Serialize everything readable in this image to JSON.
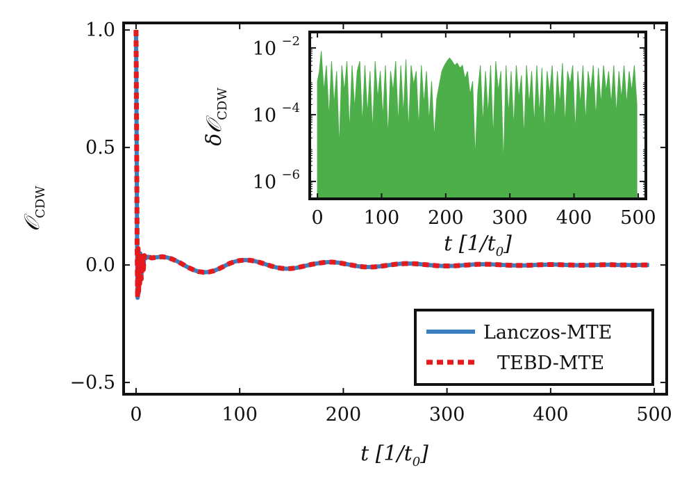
{
  "chart_data": [
    {
      "type": "line",
      "xlabel": "t [1/t₀]",
      "ylabel": "𝒪 CDW",
      "xlim": [
        -12,
        512
      ],
      "ylim": [
        -0.55,
        1.03
      ],
      "xticks": [
        0,
        100,
        200,
        300,
        400,
        500
      ],
      "yticks": [
        -0.5,
        0.0,
        0.5,
        1.0
      ],
      "xtick_labels": [
        "0",
        "100",
        "200",
        "300",
        "400",
        "500"
      ],
      "ytick_labels": [
        "−0.5",
        "0.0",
        "0.5",
        "1.0"
      ],
      "legend_position": "lower-right",
      "series": [
        {
          "name": "Lanczos-MTE",
          "color": "#3a7ebf",
          "style": "solid",
          "x": [
            0,
            0.5,
            1,
            1.5,
            2,
            2.5,
            3,
            3.5,
            4,
            5,
            6,
            7,
            8,
            10,
            12,
            15,
            20,
            25,
            30,
            35,
            40,
            45,
            50,
            55,
            60,
            65,
            70,
            75,
            80,
            85,
            90,
            95,
            100,
            105,
            110,
            115,
            120,
            125,
            130,
            135,
            140,
            145,
            150,
            155,
            160,
            165,
            170,
            175,
            180,
            185,
            190,
            195,
            200,
            205,
            210,
            215,
            220,
            225,
            230,
            235,
            240,
            245,
            250,
            255,
            260,
            265,
            270,
            275,
            280,
            285,
            290,
            295,
            300,
            305,
            310,
            315,
            320,
            325,
            330,
            335,
            340,
            345,
            350,
            355,
            360,
            365,
            370,
            375,
            380,
            385,
            390,
            395,
            400,
            405,
            410,
            415,
            420,
            425,
            430,
            435,
            440,
            445,
            450,
            455,
            460,
            465,
            470,
            475,
            480,
            485,
            490,
            495
          ],
          "y": [
            1.0,
            0.6,
            0.1,
            -0.14,
            0.07,
            -0.12,
            0.04,
            -0.08,
            0.05,
            -0.06,
            0.04,
            -0.02,
            0.04,
            0.03,
            0.035,
            0.03,
            0.033,
            0.035,
            0.032,
            0.025,
            0.015,
            0.003,
            -0.01,
            -0.02,
            -0.028,
            -0.031,
            -0.03,
            -0.025,
            -0.016,
            -0.005,
            0.006,
            0.014,
            0.019,
            0.021,
            0.02,
            0.016,
            0.01,
            0.003,
            -0.004,
            -0.01,
            -0.014,
            -0.016,
            -0.015,
            -0.012,
            -0.007,
            -0.002,
            0.003,
            0.007,
            0.01,
            0.012,
            0.012,
            0.01,
            0.006,
            0.002,
            -0.002,
            -0.006,
            -0.008,
            -0.009,
            -0.008,
            -0.006,
            -0.003,
            0.0,
            0.003,
            0.005,
            0.006,
            0.006,
            0.005,
            0.003,
            0.001,
            -0.001,
            -0.003,
            -0.004,
            -0.004,
            -0.004,
            -0.003,
            -0.001,
            0.0,
            0.002,
            0.003,
            0.003,
            0.003,
            0.002,
            0.001,
            0.0,
            -0.001,
            -0.002,
            -0.002,
            -0.002,
            -0.001,
            0.0,
            0.001,
            0.001,
            0.002,
            0.002,
            0.001,
            0.0,
            0.0,
            -0.001,
            -0.001,
            -0.001,
            0.0,
            0.0,
            0.001,
            0.001,
            0.001,
            0.0,
            0.0,
            0.0,
            -0.001,
            0.0,
            0.0,
            0.0
          ]
        },
        {
          "name": "TEBD-MTE",
          "color": "#e41a1c",
          "style": "dashed",
          "x": [
            0,
            0.5,
            1,
            1.5,
            2,
            2.5,
            3,
            3.5,
            4,
            5,
            6,
            7,
            8,
            10,
            12,
            15,
            20,
            25,
            30,
            35,
            40,
            45,
            50,
            55,
            60,
            65,
            70,
            75,
            80,
            85,
            90,
            95,
            100,
            105,
            110,
            115,
            120,
            125,
            130,
            135,
            140,
            145,
            150,
            155,
            160,
            165,
            170,
            175,
            180,
            185,
            190,
            195,
            200,
            205,
            210,
            215,
            220,
            225,
            230,
            235,
            240,
            245,
            250,
            255,
            260,
            265,
            270,
            275,
            280,
            285,
            290,
            295,
            300,
            305,
            310,
            315,
            320,
            325,
            330,
            335,
            340,
            345,
            350,
            355,
            360,
            365,
            370,
            375,
            380,
            385,
            390,
            395,
            400,
            405,
            410,
            415,
            420,
            425,
            430,
            435,
            440,
            445,
            450,
            455,
            460,
            465,
            470,
            475,
            480,
            485,
            490,
            495
          ],
          "y": [
            1.0,
            0.6,
            0.1,
            -0.14,
            0.07,
            -0.12,
            0.04,
            -0.08,
            0.05,
            -0.06,
            0.04,
            -0.02,
            0.04,
            0.03,
            0.035,
            0.03,
            0.033,
            0.035,
            0.032,
            0.025,
            0.015,
            0.003,
            -0.01,
            -0.02,
            -0.028,
            -0.031,
            -0.03,
            -0.025,
            -0.016,
            -0.005,
            0.006,
            0.014,
            0.019,
            0.021,
            0.02,
            0.016,
            0.01,
            0.003,
            -0.004,
            -0.01,
            -0.014,
            -0.016,
            -0.015,
            -0.012,
            -0.007,
            -0.002,
            0.003,
            0.007,
            0.01,
            0.012,
            0.012,
            0.01,
            0.006,
            0.002,
            -0.002,
            -0.006,
            -0.008,
            -0.009,
            -0.008,
            -0.006,
            -0.003,
            0.0,
            0.003,
            0.005,
            0.006,
            0.006,
            0.005,
            0.003,
            0.001,
            -0.001,
            -0.003,
            -0.004,
            -0.004,
            -0.004,
            -0.003,
            -0.001,
            0.0,
            0.002,
            0.003,
            0.003,
            0.003,
            0.002,
            0.001,
            0.0,
            -0.001,
            -0.002,
            -0.002,
            -0.002,
            -0.001,
            0.0,
            0.001,
            0.001,
            0.002,
            0.002,
            0.001,
            0.0,
            0.0,
            -0.001,
            -0.001,
            -0.001,
            0.0,
            0.0,
            0.001,
            0.001,
            0.001,
            0.0,
            0.0,
            0.0,
            -0.001,
            0.0,
            0.0,
            0.0
          ]
        }
      ]
    },
    {
      "type": "area",
      "xlabel": "t [1/t₀]",
      "ylabel": "δ𝒪 CDW",
      "yscale": "log",
      "xlim": [
        -12,
        512
      ],
      "ylim": [
        3e-07,
        0.03
      ],
      "xticks": [
        0,
        100,
        200,
        300,
        400,
        500
      ],
      "xtick_labels": [
        "0",
        "100",
        "200",
        "300",
        "400",
        "500"
      ],
      "ytick_labels": [
        "10",
        "10",
        "10"
      ],
      "ytick_exponents": [
        "−2",
        "−4",
        "−6"
      ],
      "series": [
        {
          "color": "#4daf4a",
          "x": [
            0,
            3,
            6,
            10,
            14,
            18,
            22,
            26,
            30,
            34,
            38,
            42,
            46,
            50,
            54,
            58,
            62,
            66,
            70,
            74,
            78,
            82,
            86,
            90,
            94,
            98,
            102,
            106,
            110,
            114,
            118,
            122,
            126,
            130,
            134,
            138,
            142,
            146,
            150,
            154,
            158,
            162,
            166,
            170,
            174,
            178,
            182,
            186,
            190,
            194,
            198,
            202,
            206,
            210,
            214,
            218,
            222,
            226,
            230,
            234,
            238,
            242,
            246,
            250,
            254,
            258,
            262,
            266,
            270,
            274,
            278,
            282,
            286,
            290,
            294,
            298,
            302,
            306,
            310,
            314,
            318,
            322,
            326,
            330,
            334,
            338,
            342,
            346,
            350,
            354,
            358,
            362,
            366,
            370,
            374,
            378,
            382,
            386,
            390,
            394,
            398,
            402,
            406,
            410,
            414,
            418,
            422,
            426,
            430,
            434,
            438,
            442,
            446,
            450,
            454,
            458,
            462,
            466,
            470,
            474,
            478,
            482,
            486,
            490,
            494,
            498
          ],
          "y": [
            0.001,
            0.002,
            0.008,
            0.0005,
            0.003,
            8e-05,
            0.004,
            0.0002,
            0.002,
            1e-05,
            0.003,
            0.0005,
            0.004,
            3e-05,
            0.003,
            0.00015,
            0.002,
            0.004,
            5e-05,
            0.003,
            0.0001,
            0.002,
            3e-05,
            0.004,
            0.0003,
            0.002,
            8e-05,
            0.003,
            2e-05,
            0.002,
            0.0005,
            0.004,
            5e-05,
            0.003,
            0.0001,
            0.0045,
            3e-05,
            0.003,
            0.0008,
            0.002,
            4e-05,
            0.003,
            0.0002,
            0.002,
            6e-05,
            0.001,
            2e-05,
            0.0003,
            0.0008,
            0.002,
            0.003,
            0.004,
            0.005,
            0.004,
            0.003,
            0.0035,
            0.0025,
            0.003,
            0.0012,
            0.002,
            0.0004,
            0.001,
            5e-06,
            0.0005,
            0.003,
            5e-05,
            0.002,
            0.0001,
            0.003,
            2e-05,
            0.004,
            0.0005,
            0.002,
            3e-06,
            0.003,
            0.0001,
            0.002,
            4e-05,
            0.003,
            0.0003,
            0.0015,
            2e-05,
            0.003,
            0.0002,
            0.002,
            5e-05,
            0.003,
            0.0001,
            0.0025,
            3e-05,
            0.002,
            0.0004,
            0.003,
            6e-05,
            0.002,
            0.0002,
            0.0035,
            5e-05,
            0.002,
            0.0008,
            0.003,
            3e-05,
            0.002,
            0.0002,
            0.003,
            6e-05,
            0.002,
            0.0005,
            0.003,
            8e-05,
            0.0025,
            0.0002,
            0.003,
            0.0005,
            0.002,
            0.0002,
            0.003,
            0.0001,
            0.002,
            0.0003,
            0.003,
            0.0002,
            0.002,
            0.0005,
            0.003,
            0.0002
          ]
        }
      ]
    }
  ],
  "legend": {
    "items": [
      {
        "label": "Lanczos-MTE",
        "color": "#3a7ebf",
        "style": "solid"
      },
      {
        "label": "TEBD-MTE",
        "color": "#e41a1c",
        "style": "dashed"
      }
    ]
  },
  "main_axes": {
    "ylabel_sub": "CDW",
    "xlabel_main": "t [1/t",
    "xlabel_sub": "0",
    "xlabel_end": "]"
  },
  "inset_axes": {
    "ylabel_prefix": "δ",
    "ylabel_sub": "CDW",
    "xlabel_main": "t [1/t",
    "xlabel_sub": "0",
    "xlabel_end": "]"
  }
}
